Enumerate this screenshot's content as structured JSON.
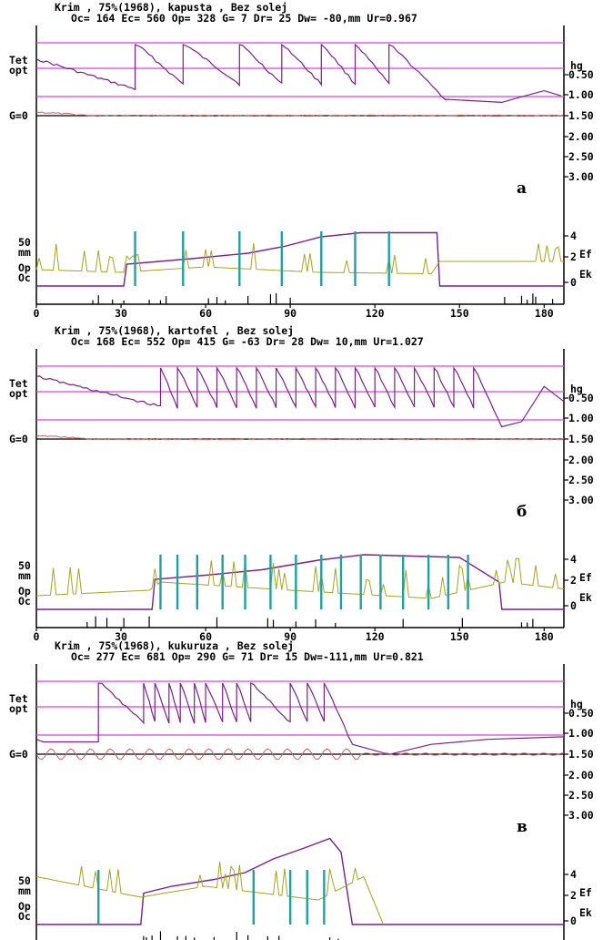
{
  "colors": {
    "theta": "#7a1f8f",
    "guide": "#e040e0",
    "g_line": "#d06060",
    "g_base": "#8b1a1a",
    "ef": "#7a1f8f",
    "ek": "#a5a51a",
    "irrigation": "#1aa3a3",
    "rain": "#000000",
    "axis": "#000000"
  },
  "labels": {
    "tet": "Tet",
    "opt": "opt",
    "g0": "G=0",
    "mm50": "50",
    "mm": "mm",
    "op": "Op",
    "oc": "Oc",
    "hg": "hg",
    "ef": "Ef",
    "ek": "Ek"
  },
  "x_axis": {
    "min": 0,
    "max": 187,
    "ticks": [
      "0",
      "30",
      "60",
      "90",
      "120",
      "150",
      "180"
    ]
  },
  "right_axis_ticks": [
    "0.50",
    "1.00",
    "1.50",
    "2.00",
    "2.50",
    "3.00"
  ],
  "ef_axis_ticks": [
    "4",
    "2",
    "0"
  ],
  "panels": [
    {
      "title": "Krim , 75%(1968), kapusta , Bez solej",
      "stats": "Oc= 164  Ec= 560  Op= 328  G=   7  Dr=  25  Dw= -80,mm  Ur=0.967",
      "letter": "а"
    },
    {
      "title": "Krim , 75%(1968), kartofel , Bez solej",
      "stats": "Oc= 168  Ec= 552  Op= 415  G= -63  Dr=  28  Dw=  10,mm  Ur=1.027",
      "letter": "б"
    },
    {
      "title": "Krim , 75%(1968), kukuruza , Bez solej",
      "stats": "Oc= 277  Ec= 681  Op= 290  G=  71  Dr=  15  Dw=-111,mm  Ur=0.821",
      "letter": "в"
    }
  ],
  "chart_data": [
    {
      "type": "line",
      "crop": "kapusta",
      "x_range": [
        0,
        187
      ],
      "theta_peaks": [
        35,
        52,
        72,
        87,
        101,
        113,
        125
      ],
      "theta_start": 0.32,
      "theta_recession_end_day": 145,
      "theta_recession_end": 1.12,
      "theta_tail": [
        {
          "x": 145,
          "y": 1.12
        },
        {
          "x": 165,
          "y": 1.18
        },
        {
          "x": 170,
          "y": 1.1
        },
        {
          "x": 180,
          "y": 0.95
        },
        {
          "x": 186,
          "y": 1.05
        }
      ],
      "irrigation_days": [
        35,
        52,
        72,
        87,
        101,
        113,
        125
      ],
      "ef_steps": [
        {
          "x": 0,
          "y": 0
        },
        {
          "x": 31,
          "y": 0
        },
        {
          "x": 32,
          "y": 1.6
        },
        {
          "x": 55,
          "y": 2.0
        },
        {
          "x": 75,
          "y": 2.4
        },
        {
          "x": 88,
          "y": 2.9
        },
        {
          "x": 101,
          "y": 3.6
        },
        {
          "x": 115,
          "y": 3.9
        },
        {
          "x": 142,
          "y": 3.9
        },
        {
          "x": 143,
          "y": 0
        },
        {
          "x": 187,
          "y": 0
        }
      ],
      "ek_level": [
        {
          "x": 0,
          "y": 1.2
        },
        {
          "x": 30,
          "y": 1.0
        },
        {
          "x": 60,
          "y": 1.4
        },
        {
          "x": 100,
          "y": 1.0
        },
        {
          "x": 140,
          "y": 0.9
        },
        {
          "x": 143,
          "y": 1.8
        },
        {
          "x": 187,
          "y": 1.8
        }
      ],
      "rain_days": [
        20,
        22,
        27,
        31,
        40,
        44,
        46,
        61,
        64,
        67,
        75,
        83,
        85,
        90,
        166,
        172,
        174,
        176,
        177,
        183
      ]
    },
    {
      "type": "line",
      "crop": "kartofel",
      "x_range": [
        0,
        187
      ],
      "theta_peaks": [
        44,
        50,
        57,
        64,
        71,
        78,
        85,
        92,
        99,
        106,
        113,
        120,
        127,
        134,
        141,
        148,
        155
      ],
      "theta_start": 0.2,
      "theta_recession_end_day": 165,
      "theta_recession_end": 1.2,
      "theta_tail": [
        {
          "x": 165,
          "y": 1.2
        },
        {
          "x": 172,
          "y": 1.1
        },
        {
          "x": 180,
          "y": 0.4
        },
        {
          "x": 187,
          "y": 0.7
        }
      ],
      "irrigation_days": [
        44,
        50,
        57,
        66,
        74,
        83,
        92,
        101,
        108,
        115,
        122,
        130,
        139,
        146,
        153
      ],
      "ef_steps": [
        {
          "x": 0,
          "y": 0
        },
        {
          "x": 41,
          "y": 0
        },
        {
          "x": 42,
          "y": 2.2
        },
        {
          "x": 60,
          "y": 2.5
        },
        {
          "x": 80,
          "y": 2.9
        },
        {
          "x": 100,
          "y": 3.6
        },
        {
          "x": 116,
          "y": 4.0
        },
        {
          "x": 150,
          "y": 3.8
        },
        {
          "x": 164,
          "y": 2.0
        },
        {
          "x": 165,
          "y": 0
        },
        {
          "x": 187,
          "y": 0
        }
      ],
      "ek_level": [
        {
          "x": 0,
          "y": 1.0
        },
        {
          "x": 40,
          "y": 1.4
        },
        {
          "x": 44,
          "y": 2.0
        },
        {
          "x": 90,
          "y": 1.4
        },
        {
          "x": 140,
          "y": 0.8
        },
        {
          "x": 166,
          "y": 2.0
        },
        {
          "x": 187,
          "y": 1.5
        }
      ],
      "rain_days": [
        18,
        21,
        25,
        31,
        40,
        64,
        82,
        84,
        92,
        99,
        106,
        130,
        151,
        172,
        174,
        176
      ]
    },
    {
      "type": "line",
      "crop": "kukuruza",
      "x_range": [
        0,
        187
      ],
      "theta_peaks": [
        22,
        38,
        42,
        47,
        51,
        56,
        60,
        66,
        71,
        76,
        90,
        96,
        102
      ],
      "theta_start": 1.15,
      "theta_recession_end_day": 112,
      "theta_recession_end": 1.25,
      "theta_tail": [
        {
          "x": 112,
          "y": 1.25
        },
        {
          "x": 125,
          "y": 1.45
        },
        {
          "x": 140,
          "y": 1.25
        },
        {
          "x": 160,
          "y": 1.15
        },
        {
          "x": 187,
          "y": 1.1
        }
      ],
      "irrigation_days": [
        22,
        77,
        90,
        96,
        102
      ],
      "ef_steps": [
        {
          "x": 0,
          "y": 0
        },
        {
          "x": 37,
          "y": 0
        },
        {
          "x": 38,
          "y": 2.3
        },
        {
          "x": 48,
          "y": 2.8
        },
        {
          "x": 63,
          "y": 3.3
        },
        {
          "x": 74,
          "y": 3.8
        },
        {
          "x": 84,
          "y": 4.8
        },
        {
          "x": 95,
          "y": 5.6
        },
        {
          "x": 104,
          "y": 6.3
        },
        {
          "x": 108,
          "y": 5.3
        },
        {
          "x": 112,
          "y": 0
        },
        {
          "x": 187,
          "y": 0
        }
      ],
      "ek_level": [
        {
          "x": 0,
          "y": 3.5
        },
        {
          "x": 37,
          "y": 2.0
        },
        {
          "x": 60,
          "y": 2.8
        },
        {
          "x": 100,
          "y": 1.8
        },
        {
          "x": 116,
          "y": 3.5
        },
        {
          "x": 123,
          "y": 0
        }
      ],
      "rain_days": [
        38,
        39,
        41,
        44,
        50,
        53,
        56,
        63,
        71,
        75,
        82,
        86,
        104,
        107
      ]
    }
  ]
}
